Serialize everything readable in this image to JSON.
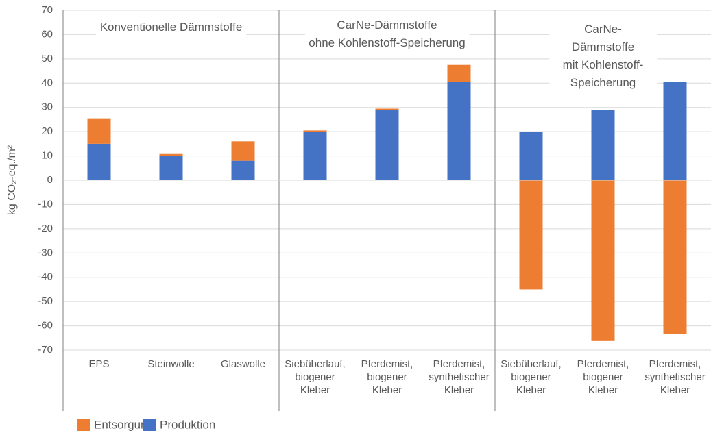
{
  "chart_data": {
    "type": "bar",
    "stacked": true,
    "y_label": "kg CO₂-eq./m²",
    "groups": [
      {
        "title": "Konventionelle Dämmstoffe"
      },
      {
        "title": "CarNe-Dämmstoffe\nohne Kohlenstoff-Speicherung"
      },
      {
        "title": "CarNe-Dämmstoffe\nmit Kohlenstoff-Speicherung"
      }
    ],
    "categories": [
      "EPS",
      "Steinwolle",
      "Glaswolle",
      "Siebüberlauf,\nbiogener\nKleber",
      "Pferdemist,\nbiogener\nKleber",
      "Pferdemist,\nsynthetischer\nKleber",
      "Siebüberlauf,\nbiogener\nKleber",
      "Pferdemist,\nbiogener\nKleber",
      "Pferdemist,\nsynthetischer\nKleber"
    ],
    "series": [
      {
        "name": "Produktion",
        "color": "#4472c4",
        "values": [
          15,
          10,
          8,
          20,
          29,
          40.5,
          20,
          29,
          40.5
        ]
      },
      {
        "name": "Entsorgung",
        "color": "#ed7d31",
        "values": [
          10.5,
          0.8,
          8,
          0.5,
          0.5,
          7,
          -45,
          -66,
          -63.5
        ]
      }
    ],
    "ylim": [
      -70,
      70
    ],
    "yticks": [
      -70,
      -60,
      -50,
      -40,
      -30,
      -20,
      -10,
      0,
      10,
      20,
      30,
      40,
      50,
      60,
      70
    ],
    "grid": true,
    "legend": "bottom-left"
  }
}
